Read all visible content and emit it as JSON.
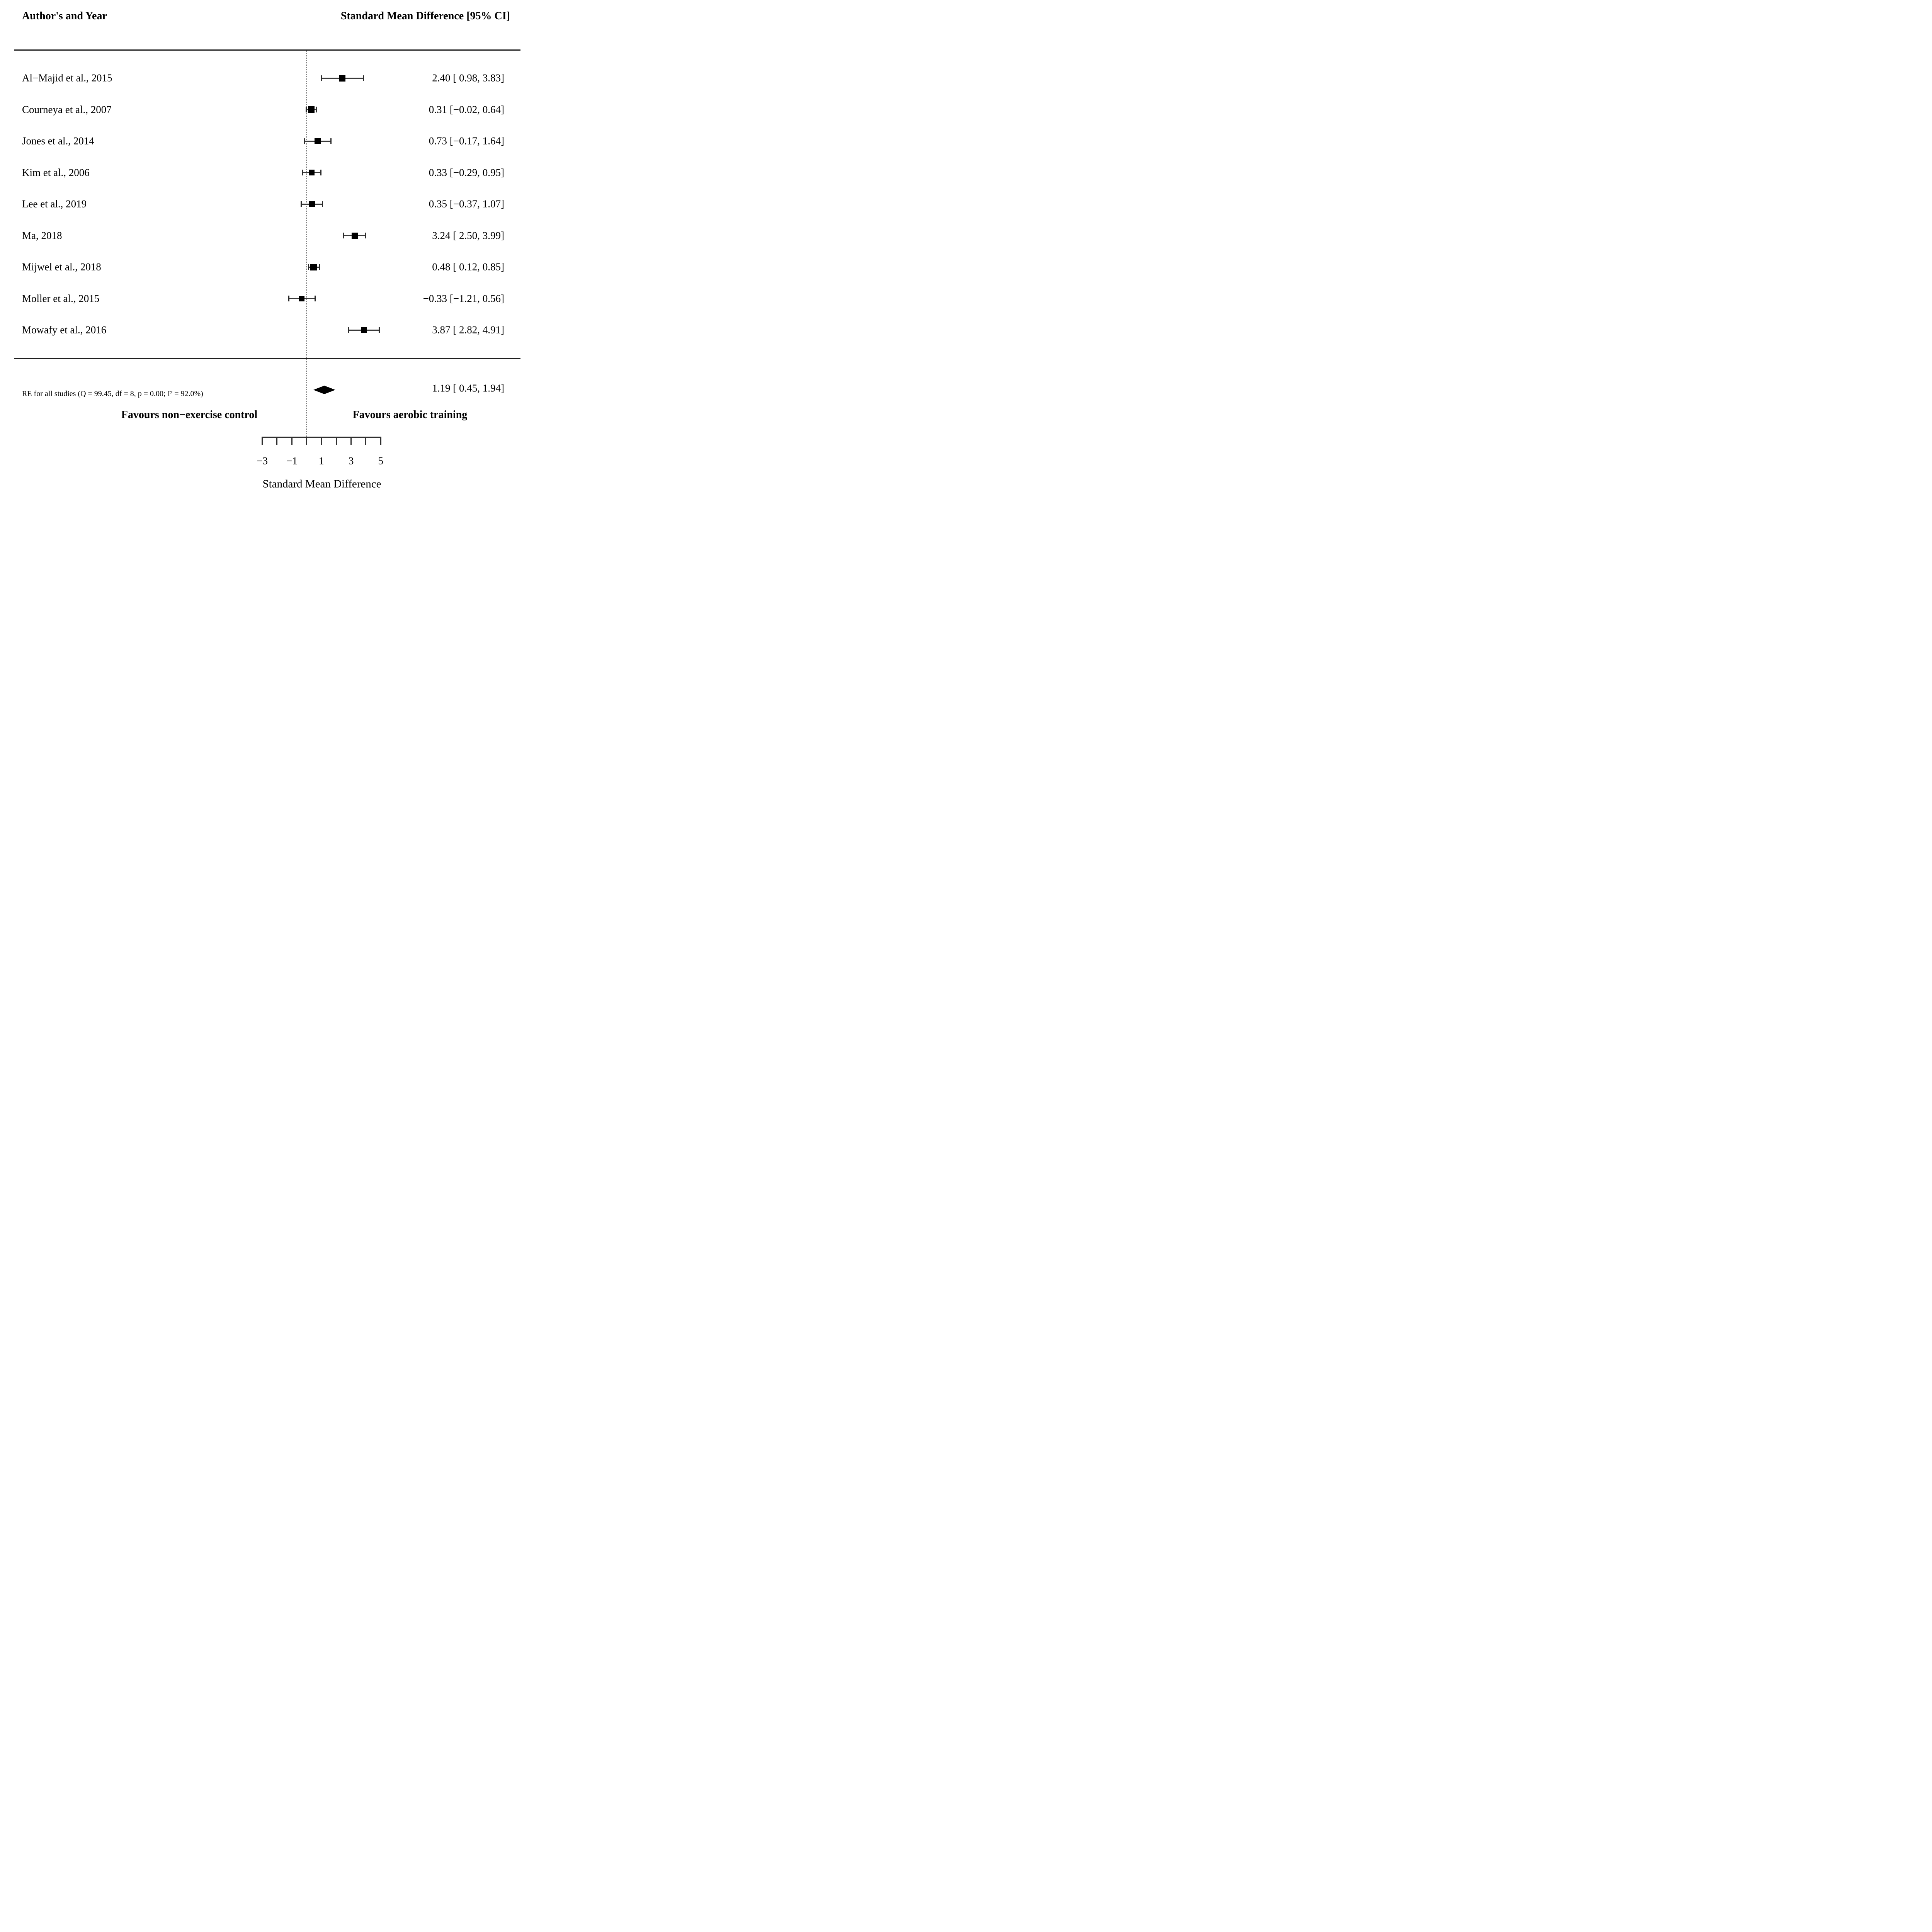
{
  "headers": {
    "left": "Author's and Year",
    "right": "Standard Mean Difference [95% CI]"
  },
  "chart_data": {
    "type": "forest",
    "title": "",
    "xlabel": "Standard Mean Difference",
    "x_axis": {
      "range": [
        -3,
        5
      ],
      "ticks": [
        -3,
        -2,
        -1,
        0,
        1,
        2,
        3,
        4,
        5
      ],
      "labeled_tick_values": [
        -3,
        -1,
        1,
        3,
        5
      ],
      "labeled_tick_text": [
        "−3",
        "−1",
        "1",
        "3",
        "5"
      ],
      "reference_line_value": 0,
      "reference_line_style": "dotted"
    },
    "studies": [
      {
        "label": "Al−Majid et al., 2015",
        "estimate": 2.4,
        "ci_low": 0.98,
        "ci_high": 3.83,
        "ci_text": "2.40 [ 0.98, 3.83]",
        "marker_px": 17
      },
      {
        "label": "Courneya et al., 2007",
        "estimate": 0.31,
        "ci_low": -0.02,
        "ci_high": 0.64,
        "ci_text": "0.31 [−0.02, 0.64]",
        "marker_px": 17
      },
      {
        "label": "Jones et al., 2014",
        "estimate": 0.73,
        "ci_low": -0.17,
        "ci_high": 1.64,
        "ci_text": "0.73 [−0.17, 1.64]",
        "marker_px": 16
      },
      {
        "label": "Kim et al., 2006",
        "estimate": 0.33,
        "ci_low": -0.29,
        "ci_high": 0.95,
        "ci_text": "0.33 [−0.29, 0.95]",
        "marker_px": 15
      },
      {
        "label": "Lee et al., 2019",
        "estimate": 0.35,
        "ci_low": -0.37,
        "ci_high": 1.07,
        "ci_text": "0.35 [−0.37, 1.07]",
        "marker_px": 15
      },
      {
        "label": "Ma, 2018",
        "estimate": 3.24,
        "ci_low": 2.5,
        "ci_high": 3.99,
        "ci_text": "3.24 [ 2.50, 3.99]",
        "marker_px": 16
      },
      {
        "label": "Mijwel et al., 2018",
        "estimate": 0.48,
        "ci_low": 0.12,
        "ci_high": 0.85,
        "ci_text": "0.48 [ 0.12, 0.85]",
        "marker_px": 17
      },
      {
        "label": "Moller et al., 2015",
        "estimate": -0.33,
        "ci_low": -1.21,
        "ci_high": 0.56,
        "ci_text": "−0.33 [−1.21, 0.56]",
        "marker_px": 14
      },
      {
        "label": "Mowafy et al., 2016",
        "estimate": 3.87,
        "ci_low": 2.82,
        "ci_high": 4.91,
        "ci_text": "3.87 [ 2.82, 4.91]",
        "marker_px": 16
      }
    ],
    "summary": {
      "label": "RE for all studies (Q = 99.45, df = 8, p = 0.00; I² = 92.0%)",
      "estimate": 1.19,
      "ci_low": 0.45,
      "ci_high": 1.94,
      "ci_text": "1.19 [ 0.45, 1.94]"
    },
    "legend": null,
    "grid": false
  },
  "favours": {
    "left": "Favours non−exercise control",
    "right": "Favours aerobic training"
  },
  "colors": {
    "background": "#ffffff",
    "text": "#000000",
    "marker": "#000000",
    "ci_line": "#3a3a3a",
    "reference_line": "#4d4d4d",
    "rule": "#1f1f1f"
  }
}
